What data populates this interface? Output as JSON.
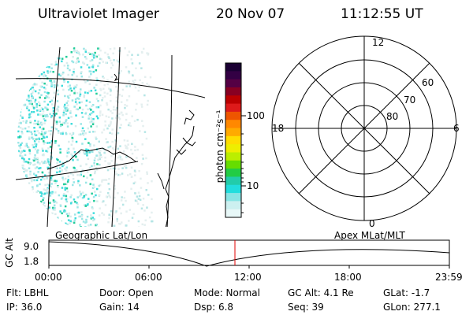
{
  "header": {
    "instrument": "Ultraviolet Imager",
    "date": "20 Nov 07",
    "time": "11:12:55 UT"
  },
  "colorbar": {
    "unit_label": "photon cm⁻²s⁻¹",
    "ticks": [
      "100",
      "10"
    ],
    "colors": [
      "#1a0033",
      "#330044",
      "#550044",
      "#880022",
      "#bb0000",
      "#dd1a1a",
      "#ee5500",
      "#ff8800",
      "#ffaa00",
      "#ffdd00",
      "#eeee00",
      "#bbee00",
      "#66dd00",
      "#22cc44",
      "#22ccaa",
      "#22dddd",
      "#88e4e4",
      "#ccf0f0",
      "#e8f8f8"
    ]
  },
  "polar": {
    "mlt_labels": {
      "top": "12",
      "left": "18",
      "right": "6",
      "bottom": "0"
    },
    "lat_labels": [
      "60",
      "70",
      "80"
    ]
  },
  "timeline": {
    "left_label": "Geographic Lat/Lon",
    "right_label": "Apex  MLat/MLT",
    "yaxis_title": "GC Alt",
    "ytick_top": "9.0",
    "ytick_bottom": "1.8",
    "xticks": [
      "00:00",
      "06:00",
      "12:00",
      "18:00",
      "23:59"
    ],
    "marker_color": "#e00000"
  },
  "info": {
    "filter": "Flt: LBHL",
    "door": "Door: Open",
    "mode": "Mode: Normal",
    "gc_alt": "GC Alt: 4.1 Re",
    "glat": "GLat:  -1.7",
    "ip": "IP: 36.0",
    "gain": "Gain: 14",
    "dsp": "Dsp:     6.8",
    "seq": "Seq: 39",
    "glon": "GLon: 277.1"
  }
}
